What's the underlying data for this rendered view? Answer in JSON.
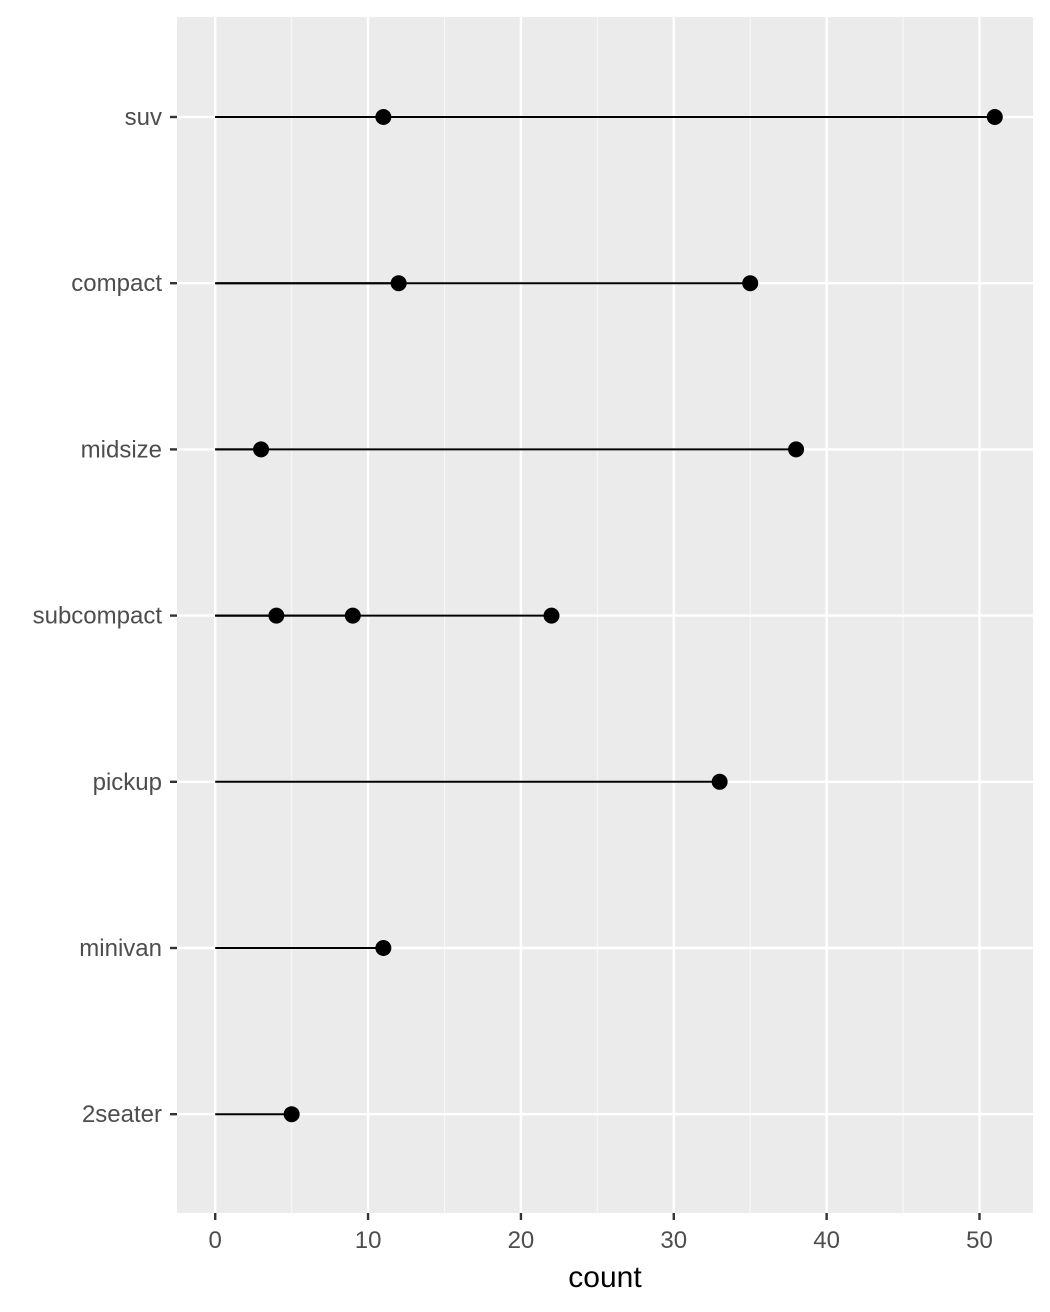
{
  "chart_data": {
    "type": "lollipop",
    "title": "",
    "xlabel": "count",
    "ylabel": "",
    "xlim": [
      -2.5,
      53.5
    ],
    "x_ticks": [
      0,
      10,
      20,
      30,
      40,
      50
    ],
    "grid": true,
    "categories": [
      "suv",
      "compact",
      "midsize",
      "subcompact",
      "pickup",
      "minivan",
      "2seater"
    ],
    "points": [
      {
        "category": "suv",
        "values": [
          11,
          51
        ]
      },
      {
        "category": "compact",
        "values": [
          12,
          35
        ]
      },
      {
        "category": "midsize",
        "values": [
          3,
          38
        ]
      },
      {
        "category": "subcompact",
        "values": [
          4,
          9,
          22
        ]
      },
      {
        "category": "pickup",
        "values": [
          33
        ]
      },
      {
        "category": "minivan",
        "values": [
          11
        ]
      },
      {
        "category": "2seater",
        "values": [
          5
        ]
      }
    ],
    "colors": {
      "panel": "#ebebeb",
      "grid_major": "#ffffff",
      "grid_minor": "#f7f7f7",
      "mark": "#000000"
    }
  }
}
